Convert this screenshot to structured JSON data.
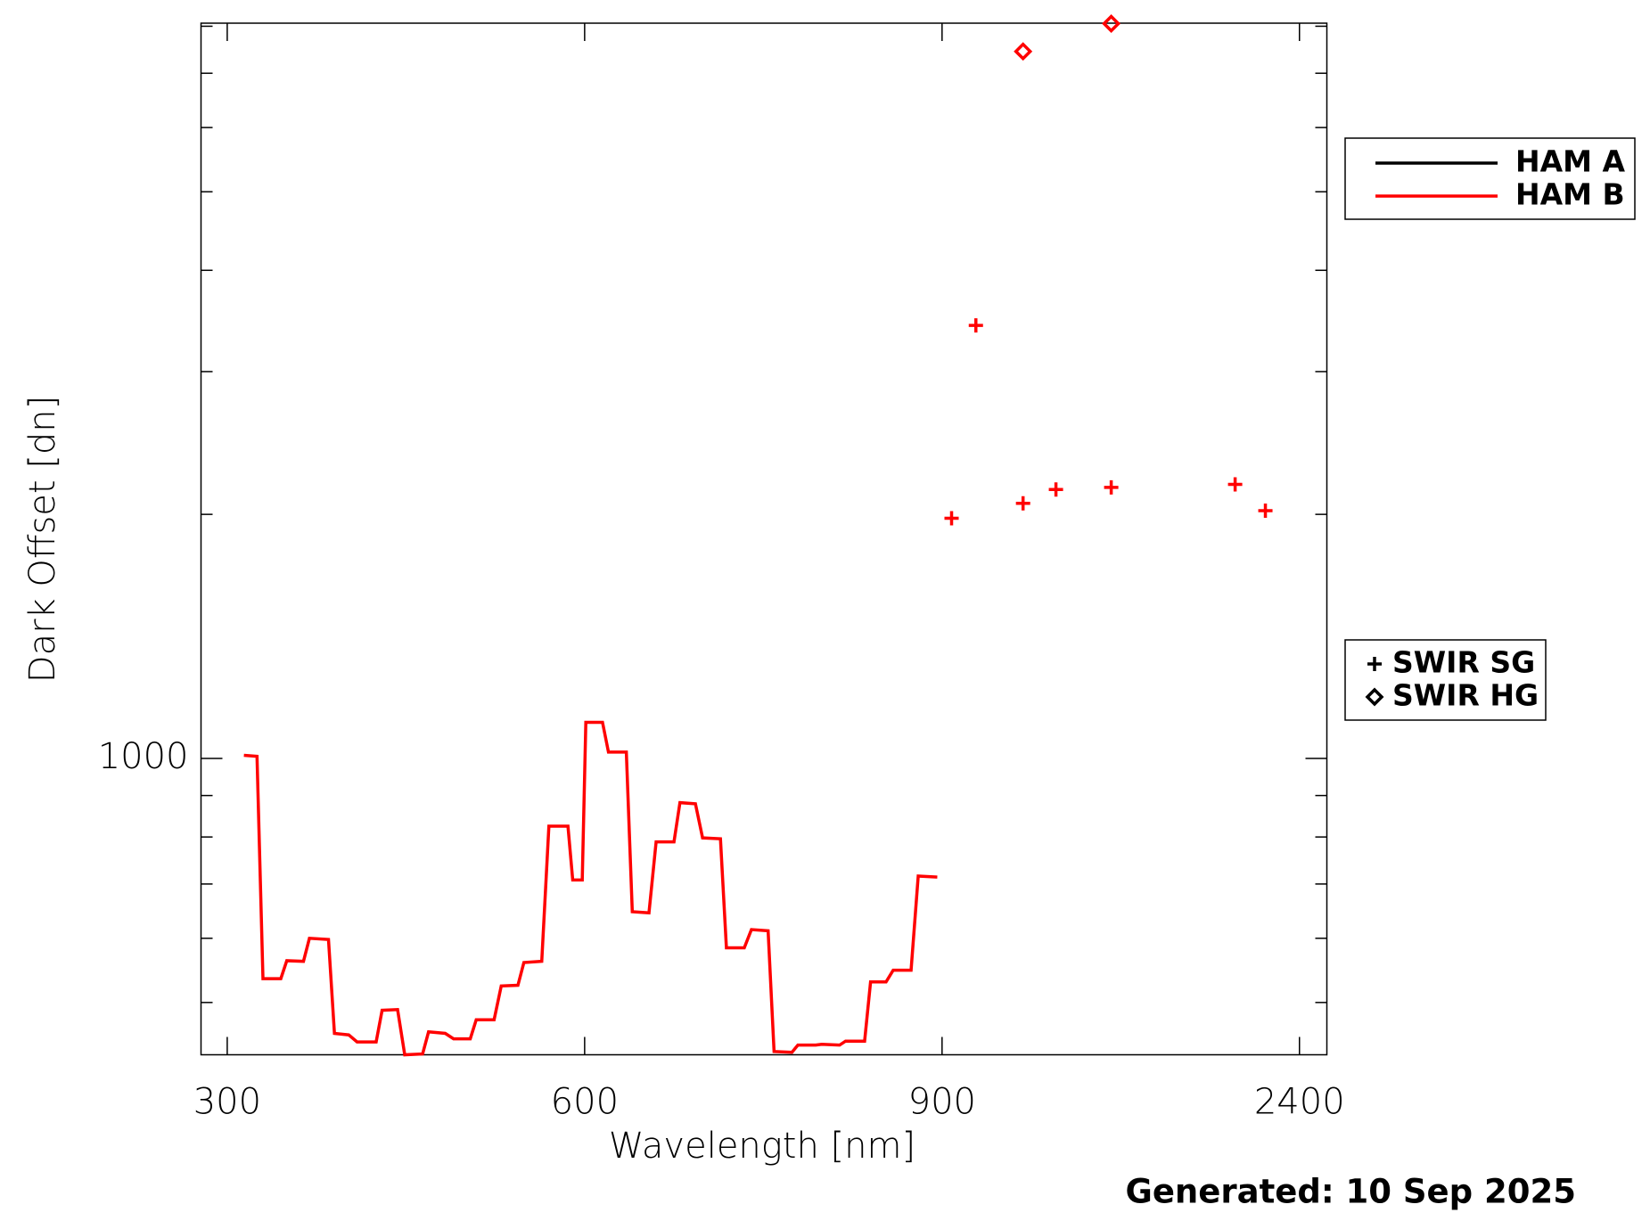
{
  "chart_data": {
    "type": "line",
    "xlabel": "Wavelength [nm]",
    "ylabel": "Dark Offset [dn]",
    "footer": "Generated: 10 Sep 2025",
    "log_y": true,
    "xlim": [
      278,
      2515
    ],
    "xticks": [
      300,
      600,
      900,
      2400
    ],
    "ylim": [
      431,
      8070
    ],
    "yticks": [
      1000
    ],
    "yminor": [
      500,
      600,
      700,
      800,
      900,
      2000,
      3000,
      4000,
      5000,
      6000,
      7000,
      8000
    ],
    "series": [
      {
        "name": "HAM A",
        "color": "#000000",
        "x": [],
        "values": []
      },
      {
        "name": "HAM B",
        "color": "#ff0000",
        "x": [
          314,
          325,
          330,
          345,
          350,
          364,
          369,
          385,
          390,
          402,
          409,
          425,
          430,
          443,
          449,
          464,
          469,
          483,
          490,
          504,
          509,
          524,
          530,
          544,
          549,
          564,
          570,
          586,
          590,
          598,
          601,
          615,
          620,
          635,
          640,
          654,
          660,
          675,
          680,
          693,
          699,
          714,
          719,
          734,
          740,
          754,
          759,
          774,
          779,
          794,
          799,
          814,
          819,
          835,
          840,
          853,
          859,
          874,
          880,
          896
        ],
        "values": [
          1009,
          1006,
          535,
          535,
          563,
          562,
          600,
          598,
          458,
          456,
          447,
          447,
          489,
          490,
          431,
          432,
          460,
          458,
          451,
          451,
          476,
          476,
          524,
          525,
          560,
          562,
          825,
          825,
          708,
          708,
          1108,
          1108,
          1018,
          1018,
          647,
          645,
          789,
          789,
          882,
          879,
          798,
          796,
          584,
          584,
          615,
          613,
          435,
          434,
          443,
          443,
          444,
          443,
          448,
          448,
          530,
          530,
          548,
          548,
          716,
          714
        ],
        "swir_sg": {
          "x": [
            940,
            1042,
            1240,
            1378,
            1610,
            2130,
            2257
          ],
          "values": [
            1978,
            3420,
            2064,
            2146,
            2159,
            2178,
            2021
          ]
        },
        "swir_hg": {
          "x": [
            1240,
            1610
          ],
          "values": [
            7448,
            8060
          ]
        }
      }
    ],
    "marker_legend": [
      {
        "name": "SWIR SG",
        "marker": "plus"
      },
      {
        "name": "SWIR HG",
        "marker": "diamond"
      }
    ]
  }
}
